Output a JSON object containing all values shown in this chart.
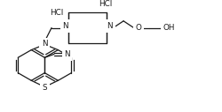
{
  "bg": "#ffffff",
  "lc": "#1a1a1a",
  "tc": "#1a1a1a",
  "lw": 0.9,
  "fs": 5.8,
  "figsize": [
    2.5,
    1.27
  ],
  "dpi": 100,
  "xlim": [
    0,
    250
  ],
  "ylim": [
    0,
    127
  ]
}
